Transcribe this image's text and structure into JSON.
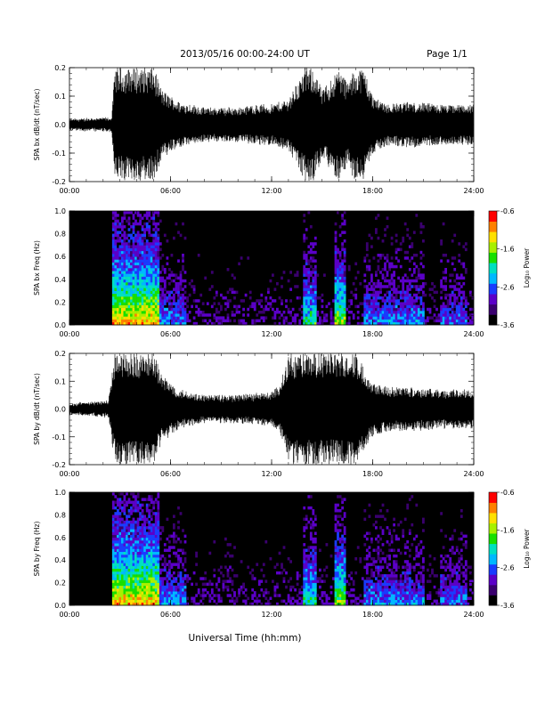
{
  "header": {
    "title": "2013/05/16  00:00-24:00 UT",
    "page": "Page 1/1"
  },
  "xlabel": "Universal Time (hh:mm)",
  "colors": {
    "trace": "#000000",
    "spectrogram_background": "#000000",
    "colormap": [
      "#000000",
      "#3a006e",
      "#5b00c8",
      "#1a3cff",
      "#00b8ff",
      "#00e0c0",
      "#18e000",
      "#a8f000",
      "#ffe000",
      "#ff8000",
      "#ff0000"
    ]
  },
  "chart_data": [
    {
      "type": "line",
      "name": "SPA bx waveform",
      "ylabel": "SPA bx dB/dt (nT/sec)",
      "xlim": [
        0,
        24
      ],
      "ylim": [
        -0.2,
        0.2
      ],
      "yticks": [
        "0.2",
        "0.1",
        "0.0",
        "-0.1",
        "-0.2"
      ],
      "xticks": [
        "00:00",
        "06:00",
        "12:00",
        "18:00",
        "24:00"
      ],
      "amplitude_profile": {
        "hours": [
          0,
          2.5,
          2.7,
          3.0,
          4.0,
          5.0,
          5.5,
          6.5,
          8,
          10,
          11,
          12,
          13,
          14,
          14.5,
          15,
          16,
          16.5,
          17,
          17.5,
          18,
          19,
          20,
          22,
          24
        ],
        "amplitude": [
          0.02,
          0.025,
          0.2,
          0.2,
          0.2,
          0.2,
          0.12,
          0.08,
          0.06,
          0.06,
          0.07,
          0.07,
          0.09,
          0.2,
          0.2,
          0.12,
          0.2,
          0.15,
          0.2,
          0.2,
          0.1,
          0.07,
          0.08,
          0.07,
          0.07
        ]
      }
    },
    {
      "type": "heatmap",
      "name": "SPA bx spectrogram",
      "ylabel": "SPA bx Freq (Hz)",
      "xlim": [
        0,
        24
      ],
      "ylim": [
        0,
        1.0
      ],
      "yticks": [
        "1.0",
        "0.8",
        "0.6",
        "0.4",
        "0.2",
        "0.0"
      ],
      "xticks": [
        "00:00",
        "06:00",
        "12:00",
        "18:00",
        "24:00"
      ],
      "colorbar": {
        "label": "Log₁₀ Power",
        "range": [
          -3.6,
          -0.6
        ],
        "ticks": [
          "-0.6",
          "-1.6",
          "-2.6",
          "-3.6"
        ]
      }
    },
    {
      "type": "line",
      "name": "SPA by waveform",
      "ylabel": "SPA by dB/dt (nT/sec)",
      "xlim": [
        0,
        24
      ],
      "ylim": [
        -0.2,
        0.2
      ],
      "yticks": [
        "0.2",
        "0.1",
        "0.0",
        "-0.1",
        "-0.2"
      ],
      "xticks": [
        "00:00",
        "06:00",
        "12:00",
        "18:00",
        "24:00"
      ],
      "amplitude_profile": {
        "hours": [
          0,
          2.3,
          2.7,
          3.0,
          4.0,
          5.0,
          5.5,
          6.5,
          8,
          10,
          12,
          12.5,
          13,
          14,
          15,
          16,
          17,
          17.5,
          18,
          19,
          20,
          22,
          24
        ],
        "amplitude": [
          0.02,
          0.03,
          0.2,
          0.2,
          0.2,
          0.2,
          0.12,
          0.07,
          0.05,
          0.05,
          0.06,
          0.09,
          0.2,
          0.2,
          0.2,
          0.2,
          0.2,
          0.15,
          0.1,
          0.08,
          0.08,
          0.07,
          0.07
        ]
      }
    },
    {
      "type": "heatmap",
      "name": "SPA by spectrogram",
      "ylabel": "SPA by Freq (Hz)",
      "xlim": [
        0,
        24
      ],
      "ylim": [
        0,
        1.0
      ],
      "yticks": [
        "1.0",
        "0.8",
        "0.6",
        "0.4",
        "0.2",
        "0.0"
      ],
      "xticks": [
        "00:00",
        "06:00",
        "12:00",
        "18:00",
        "24:00"
      ],
      "colorbar": {
        "label": "Log₁₀ Power",
        "range": [
          -3.6,
          -0.6
        ],
        "ticks": [
          "-0.6",
          "-1.6",
          "-2.6",
          "-3.6"
        ]
      }
    }
  ]
}
